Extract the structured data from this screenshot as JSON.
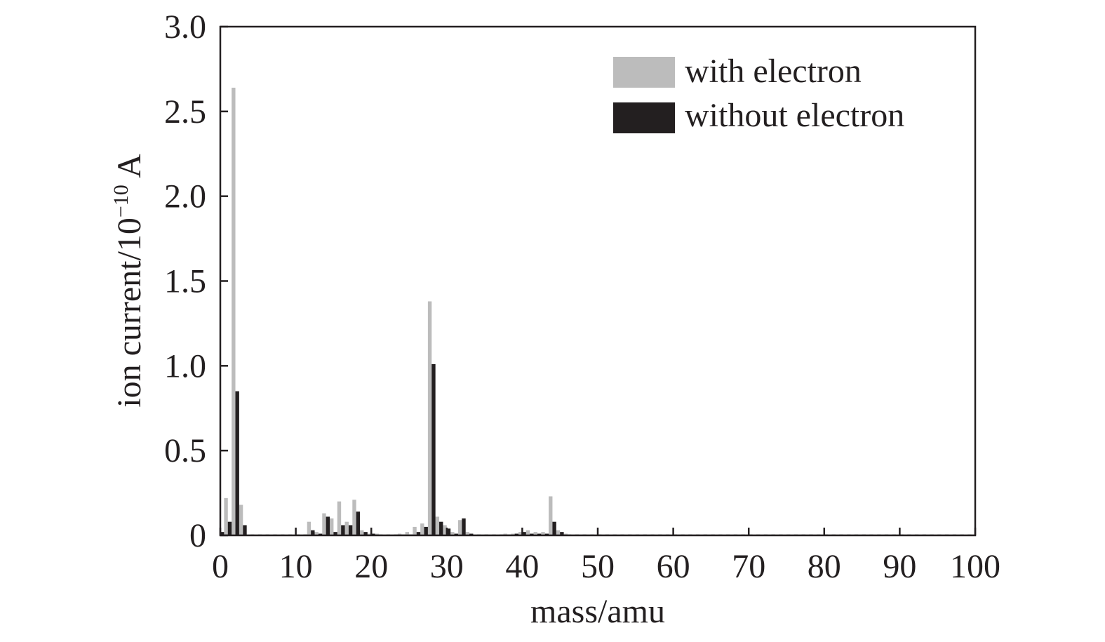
{
  "chart_data": {
    "type": "bar",
    "xlabel": "mass/amu",
    "ylabel": {
      "prefix": "ion current/10",
      "exponent": "−10",
      "suffix": " A"
    },
    "xlim": [
      0,
      100
    ],
    "ylim": [
      0,
      3.0
    ],
    "x_ticks": [
      0,
      10,
      20,
      30,
      40,
      50,
      60,
      70,
      80,
      90,
      100
    ],
    "x_tick_labels": [
      "0",
      "10",
      "20",
      "30",
      "40",
      "50",
      "60",
      "70",
      "80",
      "90",
      "100"
    ],
    "y_ticks": [
      0,
      0.5,
      1.0,
      1.5,
      2.0,
      2.5,
      3.0
    ],
    "y_tick_labels": [
      "0",
      "0.5",
      "1.0",
      "1.5",
      "2.0",
      "2.5",
      "3.0"
    ],
    "grid": false,
    "legend_position": "top-right",
    "x": [
      0,
      1,
      2,
      3,
      4,
      5,
      6,
      7,
      8,
      9,
      10,
      11,
      12,
      13,
      14,
      15,
      16,
      17,
      18,
      19,
      20,
      21,
      22,
      23,
      24,
      25,
      26,
      27,
      28,
      29,
      30,
      31,
      32,
      33,
      34,
      35,
      36,
      37,
      38,
      39,
      40,
      41,
      42,
      43,
      44,
      45,
      46,
      47,
      48,
      49,
      50,
      51,
      52,
      53,
      54,
      55,
      56,
      57,
      58,
      59,
      60,
      61,
      62,
      63,
      64,
      65,
      66,
      67,
      68,
      69,
      70,
      71,
      72,
      73,
      74,
      75,
      76,
      77,
      78,
      79,
      80,
      81,
      82,
      83,
      84,
      85,
      86,
      87,
      88,
      89,
      90,
      91,
      92,
      93,
      94,
      95,
      96,
      97,
      98,
      99,
      100
    ],
    "series": [
      {
        "name": "with electron",
        "color": "#bcbcbc",
        "values": [
          0.01,
          0.22,
          2.64,
          0.18,
          0.005,
          0.005,
          0.005,
          0.005,
          0.005,
          0.005,
          0.005,
          0.005,
          0.08,
          0.02,
          0.13,
          0.1,
          0.2,
          0.08,
          0.21,
          0.03,
          0.01,
          0.01,
          0.005,
          0.005,
          0.01,
          0.02,
          0.05,
          0.07,
          1.38,
          0.11,
          0.06,
          0.02,
          0.09,
          0.02,
          0.005,
          0.005,
          0.005,
          0.005,
          0.01,
          0.01,
          0.02,
          0.03,
          0.02,
          0.02,
          0.23,
          0.03,
          0.01,
          0.005,
          0.005,
          0.005,
          0.005,
          0.005,
          0.005,
          0.005,
          0.005,
          0.005,
          0.005,
          0.005,
          0.005,
          0.005,
          0.005,
          0.005,
          0.005,
          0.005,
          0.005,
          0.005,
          0.005,
          0.005,
          0.005,
          0.005,
          0.005,
          0.005,
          0.005,
          0.005,
          0.005,
          0.005,
          0.005,
          0.005,
          0.005,
          0.005,
          0.005,
          0.005,
          0.005,
          0.005,
          0.005,
          0.005,
          0.005,
          0.005,
          0.005,
          0.005,
          0.005,
          0.005,
          0.005,
          0.005,
          0.005,
          0.005,
          0.005,
          0.005,
          0.005,
          0.005,
          0.005
        ]
      },
      {
        "name": "without electron",
        "color": "#231f20",
        "values": [
          0.02,
          0.08,
          0.85,
          0.06,
          0.005,
          0.005,
          0.005,
          0.005,
          0.005,
          0.005,
          0.005,
          0.005,
          0.03,
          0.01,
          0.11,
          0.02,
          0.06,
          0.06,
          0.14,
          0.02,
          0.01,
          0.005,
          0.005,
          0.005,
          0.005,
          0.005,
          0.02,
          0.05,
          1.01,
          0.08,
          0.04,
          0.01,
          0.1,
          0.01,
          0.005,
          0.005,
          0.005,
          0.005,
          0.005,
          0.01,
          0.02,
          0.01,
          0.01,
          0.01,
          0.08,
          0.02,
          0.005,
          0.005,
          0.005,
          0.005,
          0.005,
          0.005,
          0.005,
          0.005,
          0.005,
          0.005,
          0.005,
          0.005,
          0.005,
          0.005,
          0.005,
          0.005,
          0.005,
          0.005,
          0.005,
          0.005,
          0.005,
          0.005,
          0.005,
          0.005,
          0.005,
          0.005,
          0.005,
          0.005,
          0.005,
          0.005,
          0.005,
          0.005,
          0.005,
          0.005,
          0.005,
          0.005,
          0.005,
          0.005,
          0.005,
          0.005,
          0.005,
          0.005,
          0.005,
          0.005,
          0.005,
          0.005,
          0.005,
          0.005,
          0.005,
          0.005,
          0.005,
          0.005,
          0.005,
          0.005,
          0.005
        ]
      }
    ]
  }
}
